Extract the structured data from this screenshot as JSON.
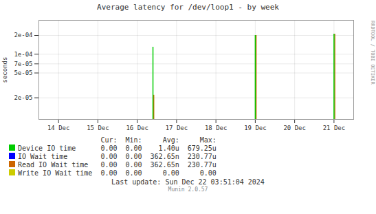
{
  "chart_data": {
    "type": "bar",
    "title": "Average latency for /dev/loop1 - by week",
    "ylabel": "seconds",
    "log": "y",
    "grid": true,
    "xlim": [
      -0.5,
      7.5
    ],
    "xticks": [
      {
        "value": 0,
        "label": "14 Dec"
      },
      {
        "value": 1,
        "label": "15 Dec"
      },
      {
        "value": 2,
        "label": "16 Dec"
      },
      {
        "value": 3,
        "label": "17 Dec"
      },
      {
        "value": 4,
        "label": "18 Dec"
      },
      {
        "value": 5,
        "label": "19 Dec"
      },
      {
        "value": 6,
        "label": "20 Dec"
      },
      {
        "value": 7,
        "label": "21 Dec"
      }
    ],
    "ylim": [
      9e-06,
      0.00035
    ],
    "yticks": [
      {
        "value": 2e-05,
        "label": "2e-05"
      },
      {
        "value": 5e-05,
        "label": "5e-05"
      },
      {
        "value": 7e-05,
        "label": "7e-05"
      },
      {
        "value": 0.0001,
        "label": "1e-04"
      },
      {
        "value": 0.0002,
        "label": "2e-04"
      }
    ],
    "series": [
      {
        "name": "Device IO time",
        "color": "#00cc00",
        "x": [
          2.4,
          5.0,
          7.0
        ],
        "values": [
          0.00013,
          0.0002,
          0.00021
        ]
      },
      {
        "name": "IO Wait time",
        "color": "#0000ff",
        "x": [],
        "values": []
      },
      {
        "name": "Read IO Wait time",
        "color": "#cc6600",
        "x": [
          2.42,
          5.02,
          7.02
        ],
        "values": [
          2.2e-05,
          0.0002,
          0.00021
        ]
      },
      {
        "name": "Write IO Wait time",
        "color": "#cccc00",
        "x": [],
        "values": []
      }
    ],
    "table": {
      "headers": [
        "Cur:",
        "Min:",
        "Avg:",
        "Max:"
      ],
      "rows": [
        [
          "0.00",
          "0.00",
          "1.40u",
          "679.25u"
        ],
        [
          "0.00",
          "0.00",
          "362.65n",
          "230.77u"
        ],
        [
          "0.00",
          "0.00",
          "362.65n",
          "230.77u"
        ],
        [
          "0.00",
          "0.00",
          "0.00",
          "0.00"
        ]
      ]
    },
    "footer": "Last update: Sun Dec 22 03:51:04 2024",
    "watermark": "Munin 2.0.57",
    "side_text": "RRDTOOL / TOBI OETIKER"
  }
}
